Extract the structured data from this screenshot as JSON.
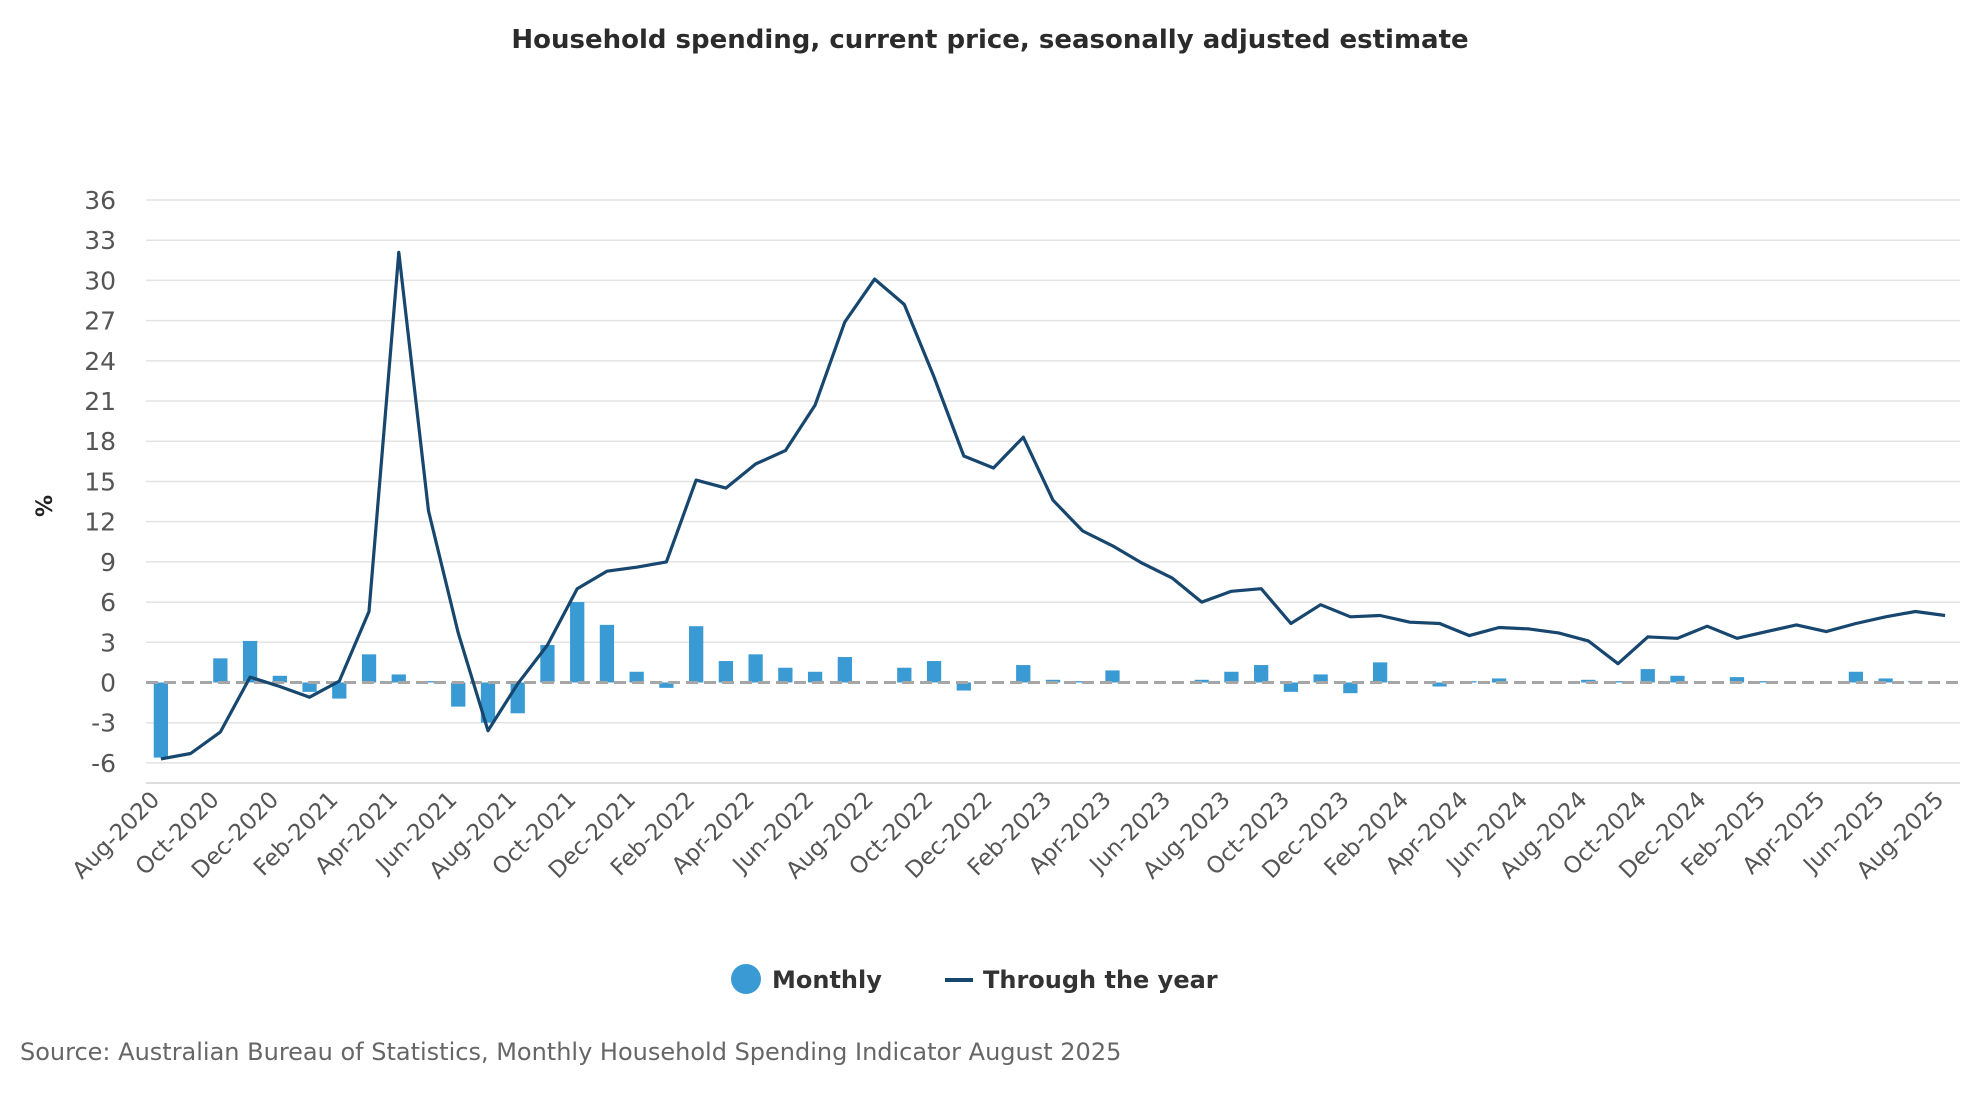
{
  "chart_data": {
    "type": "bar",
    "title": "Household spending, current price, seasonally adjusted estimate",
    "ylabel": "%",
    "ylim": [
      -7.5,
      36
    ],
    "yticks": [
      36,
      33,
      30,
      27,
      24,
      21,
      18,
      15,
      12,
      9,
      6,
      3,
      0,
      -3,
      -6
    ],
    "x": [
      "Aug-2020",
      "Sep-2020",
      "Oct-2020",
      "Nov-2020",
      "Dec-2020",
      "Jan-2021",
      "Feb-2021",
      "Mar-2021",
      "Apr-2021",
      "May-2021",
      "Jun-2021",
      "Jul-2021",
      "Aug-2021",
      "Sep-2021",
      "Oct-2021",
      "Nov-2021",
      "Dec-2021",
      "Jan-2022",
      "Feb-2022",
      "Mar-2022",
      "Apr-2022",
      "May-2022",
      "Jun-2022",
      "Jul-2022",
      "Aug-2022",
      "Sep-2022",
      "Oct-2022",
      "Nov-2022",
      "Dec-2022",
      "Jan-2023",
      "Feb-2023",
      "Mar-2023",
      "Apr-2023",
      "May-2023",
      "Jun-2023",
      "Jul-2023",
      "Aug-2023",
      "Sep-2023",
      "Oct-2023",
      "Nov-2023",
      "Dec-2023",
      "Jan-2024",
      "Feb-2024",
      "Mar-2024",
      "Apr-2024",
      "May-2024",
      "Jun-2024",
      "Jul-2024",
      "Aug-2024",
      "Sep-2024",
      "Oct-2024",
      "Nov-2024",
      "Dec-2024",
      "Jan-2025",
      "Feb-2025",
      "Mar-2025",
      "Apr-2025",
      "May-2025",
      "Jun-2025",
      "Jul-2025",
      "Aug-2025"
    ],
    "xtick_labels": [
      "Aug-2020",
      "Oct-2020",
      "Dec-2020",
      "Feb-2021",
      "Apr-2021",
      "Jun-2021",
      "Aug-2021",
      "Oct-2021",
      "Dec-2021",
      "Feb-2022",
      "Apr-2022",
      "Jun-2022",
      "Aug-2022",
      "Oct-2022",
      "Dec-2022",
      "Feb-2023",
      "Apr-2023",
      "Jun-2023",
      "Aug-2023",
      "Oct-2023",
      "Dec-2023",
      "Feb-2024",
      "Apr-2024",
      "Jun-2024",
      "Aug-2024",
      "Oct-2024",
      "Dec-2024",
      "Feb-2025",
      "Apr-2025",
      "Jun-2025",
      "Aug-2025"
    ],
    "series": [
      {
        "name": "Monthly",
        "type": "bar",
        "color": "#3a9ad4",
        "values": [
          -5.6,
          0.0,
          1.8,
          3.1,
          0.5,
          -0.7,
          -1.2,
          2.1,
          0.6,
          0.1,
          -1.8,
          -3.0,
          -2.3,
          2.8,
          6.0,
          4.3,
          0.8,
          -0.4,
          4.2,
          1.6,
          2.1,
          1.1,
          0.8,
          1.9,
          0.0,
          1.1,
          1.6,
          -0.6,
          0.0,
          1.3,
          0.2,
          0.1,
          0.9,
          0.0,
          0.0,
          0.2,
          0.8,
          1.3,
          -0.7,
          0.6,
          -0.8,
          1.5,
          0.0,
          -0.3,
          0.1,
          0.3,
          0.0,
          0.0,
          0.2,
          0.1,
          1.0,
          0.5,
          0.0,
          0.4,
          0.1,
          0.0,
          0.0,
          0.8,
          0.3,
          0.1,
          0.0
        ]
      },
      {
        "name": "Through the year",
        "type": "line",
        "color": "#17466e",
        "values": [
          -5.7,
          -5.3,
          -3.7,
          0.4,
          -0.3,
          -1.1,
          0.1,
          5.3,
          32.1,
          12.8,
          3.7,
          -3.6,
          -0.1,
          2.8,
          7.0,
          8.3,
          8.6,
          9.0,
          15.1,
          14.5,
          16.3,
          17.3,
          20.7,
          26.9,
          30.1,
          28.2,
          22.8,
          16.9,
          16.0,
          18.3,
          13.6,
          11.3,
          10.2,
          8.9,
          7.8,
          6.0,
          6.8,
          7.0,
          4.4,
          5.8,
          4.9,
          5.0,
          4.5,
          4.4,
          3.5,
          4.1,
          4.0,
          3.7,
          3.1,
          1.4,
          3.4,
          3.3,
          4.2,
          3.3,
          3.8,
          4.3,
          3.8,
          4.4,
          4.9,
          5.3,
          5.0
        ]
      }
    ],
    "legend": {
      "position": "bottom-center",
      "items": [
        "Monthly",
        "Through the year"
      ]
    },
    "grid": true
  },
  "source": "Source: Australian Bureau of Statistics, Monthly Household Spending Indicator August 2025",
  "colors": {
    "bar": "#3a9ad4",
    "line": "#17466e",
    "grid": "#e3e3e3",
    "zero_line": "#a6a6a6"
  }
}
